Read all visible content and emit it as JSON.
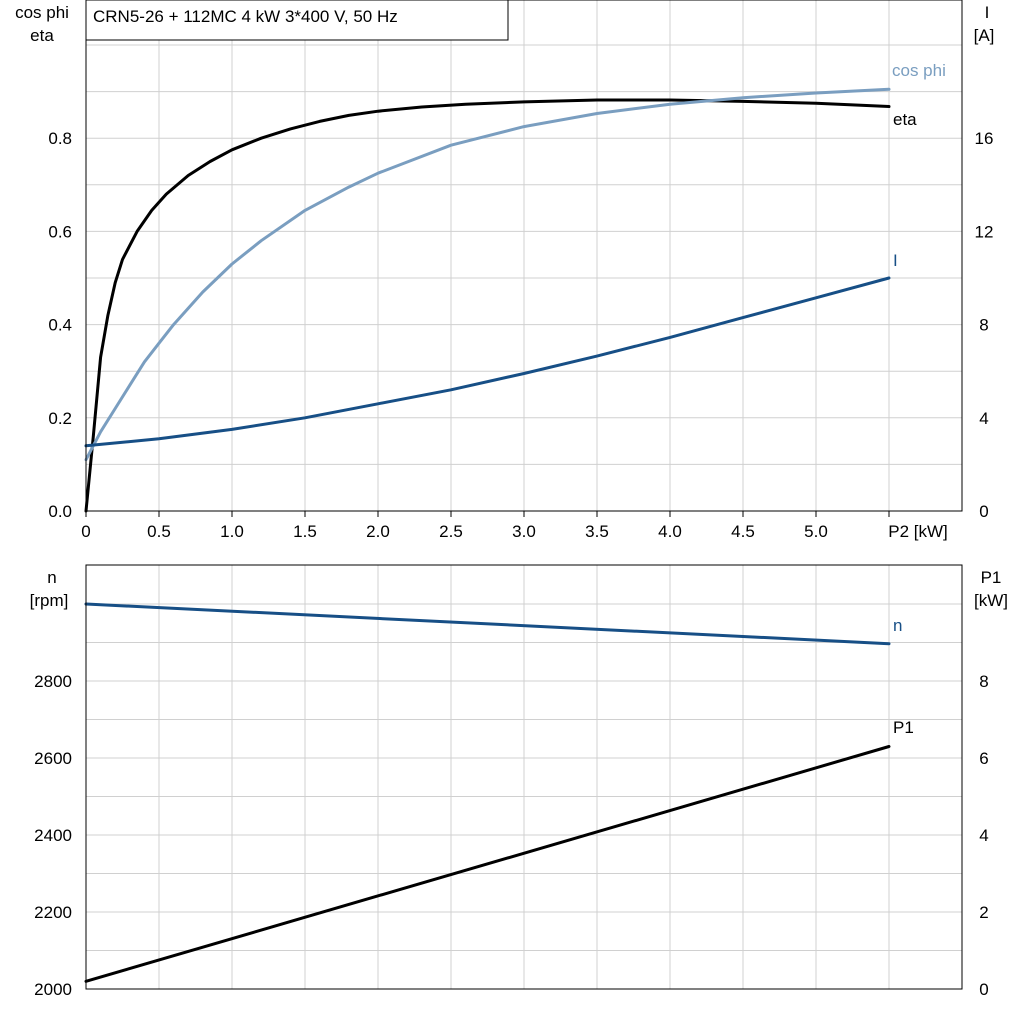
{
  "title": "CRN5-26 + 112MC   4 kW   3*400 V, 50 Hz",
  "colors": {
    "eta": "#000000",
    "cosphi": "#7a9ec0",
    "current": "#174f86",
    "speed": "#174f86",
    "p1": "#000000",
    "grid": "#d0d0d0"
  },
  "chart_data": [
    {
      "type": "line",
      "panel": "top",
      "x_label": "P2 [kW]",
      "x_ticks": [
        "0",
        "0.5",
        "1.0",
        "1.5",
        "2.0",
        "2.5",
        "3.0",
        "3.5",
        "4.0",
        "4.5",
        "5.0"
      ],
      "xlim": [
        0,
        6
      ],
      "y_left_label": [
        "cos phi",
        "eta"
      ],
      "y_left_ticks": [
        "0.0",
        "0.2",
        "0.4",
        "0.6",
        "0.8"
      ],
      "ylim_left": [
        0,
        1.0
      ],
      "y_right_label": [
        "I",
        "[A]"
      ],
      "y_right_ticks": [
        "0",
        "4",
        "8",
        "12",
        "16"
      ],
      "ylim_right": [
        0,
        20
      ],
      "grid": true,
      "series": [
        {
          "name": "eta",
          "axis": "left",
          "x": [
            0,
            0.05,
            0.1,
            0.15,
            0.2,
            0.25,
            0.35,
            0.45,
            0.55,
            0.7,
            0.85,
            1.0,
            1.2,
            1.4,
            1.6,
            1.8,
            2.0,
            2.3,
            2.6,
            3.0,
            3.5,
            4.0,
            4.5,
            5.0,
            5.5
          ],
          "y": [
            0.0,
            0.16,
            0.33,
            0.42,
            0.49,
            0.54,
            0.6,
            0.645,
            0.68,
            0.72,
            0.75,
            0.775,
            0.8,
            0.82,
            0.836,
            0.849,
            0.858,
            0.867,
            0.873,
            0.878,
            0.882,
            0.882,
            0.879,
            0.875,
            0.868
          ]
        },
        {
          "name": "cos phi",
          "axis": "left",
          "x": [
            0,
            0.1,
            0.2,
            0.3,
            0.4,
            0.5,
            0.6,
            0.8,
            1.0,
            1.2,
            1.5,
            1.8,
            2.0,
            2.5,
            3.0,
            3.5,
            4.0,
            4.5,
            5.0,
            5.5
          ],
          "y": [
            0.11,
            0.17,
            0.22,
            0.27,
            0.32,
            0.36,
            0.4,
            0.47,
            0.53,
            0.58,
            0.645,
            0.695,
            0.725,
            0.785,
            0.825,
            0.853,
            0.873,
            0.887,
            0.897,
            0.905
          ]
        },
        {
          "name": "I",
          "axis": "right",
          "x": [
            0,
            0.5,
            1.0,
            1.5,
            2.0,
            2.5,
            3.0,
            3.5,
            4.0,
            4.5,
            5.0,
            5.5
          ],
          "y": [
            2.8,
            3.1,
            3.5,
            4.0,
            4.6,
            5.2,
            5.9,
            6.65,
            7.45,
            8.3,
            9.15,
            10.0
          ]
        }
      ]
    },
    {
      "type": "line",
      "panel": "bottom",
      "xlim": [
        0,
        6
      ],
      "y_left_label": [
        "n",
        "[rpm]"
      ],
      "y_left_ticks": [
        "2000",
        "2200",
        "2400",
        "2600",
        "2800"
      ],
      "ylim_left": [
        2000,
        3100
      ],
      "y_right_label": [
        "P1",
        "[kW]"
      ],
      "y_right_ticks": [
        "0",
        "2",
        "4",
        "6",
        "8"
      ],
      "ylim_right": [
        0,
        11
      ],
      "grid": true,
      "series": [
        {
          "name": "n",
          "axis": "left",
          "x": [
            0,
            5.5
          ],
          "y": [
            3000,
            2897
          ]
        },
        {
          "name": "P1",
          "axis": "right",
          "x": [
            0,
            5.5
          ],
          "y": [
            0.2,
            6.3
          ]
        }
      ]
    }
  ]
}
